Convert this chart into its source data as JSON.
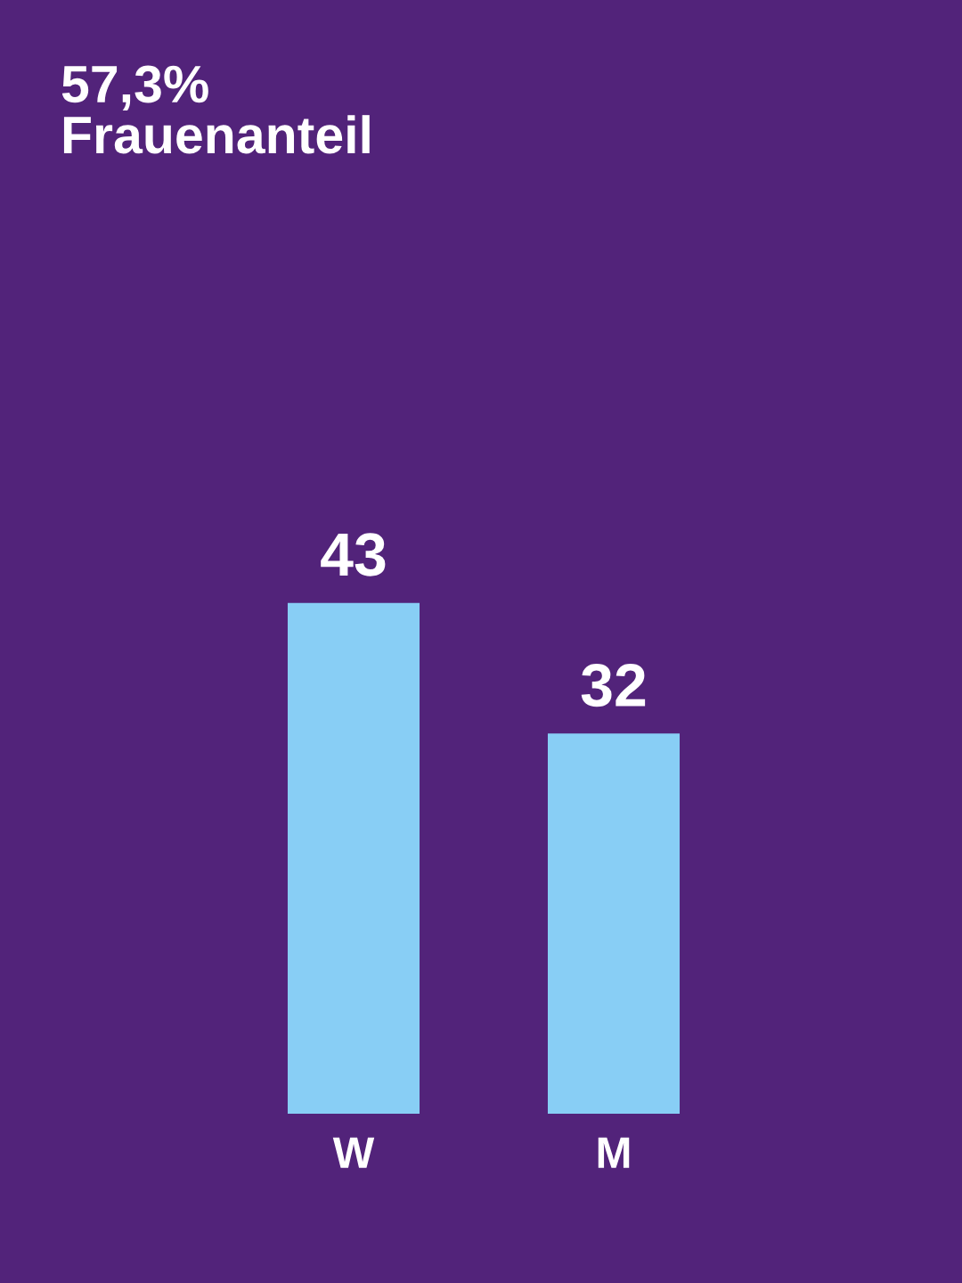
{
  "chart_data": {
    "type": "bar",
    "title": "57,3%\nFrauenanteil",
    "categories": [
      "W",
      "M"
    ],
    "values": [
      43,
      32
    ],
    "color": "#88cef5",
    "data_labels": true,
    "grid": false,
    "legend": false
  }
}
